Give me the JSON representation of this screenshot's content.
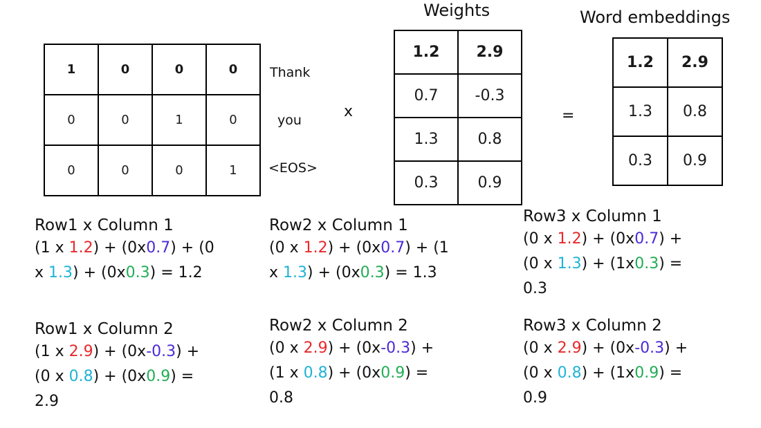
{
  "onehot": {
    "rows": [
      [
        "1",
        "0",
        "0",
        "0"
      ],
      [
        "0",
        "0",
        "1",
        "0"
      ],
      [
        "0",
        "0",
        "0",
        "1"
      ]
    ],
    "tokens": [
      "Thank",
      "you",
      "<EOS>"
    ]
  },
  "ops": {
    "times": "x",
    "equals": "="
  },
  "weights": {
    "title": "Weights",
    "rows": [
      [
        "1.2",
        "2.9"
      ],
      [
        "0.7",
        "-0.3"
      ],
      [
        "1.3",
        "0.8"
      ],
      [
        "0.3",
        "0.9"
      ]
    ]
  },
  "embeddings": {
    "title": "Word embeddings",
    "rows": [
      [
        "1.2",
        "2.9"
      ],
      [
        "1.3",
        "0.8"
      ],
      [
        "0.3",
        "0.9"
      ]
    ]
  },
  "colors": {
    "row1_weight": "#e8282b",
    "row2_weight": "#4b2ad8",
    "row3_weight": "#1fb3d6",
    "row4_weight": "#22ad55"
  },
  "calcs": [
    {
      "title": "Row1 x Column 1",
      "lines": [
        [
          {
            "t": "(1 x "
          },
          {
            "t": "1.2",
            "c": "c1"
          },
          {
            "t": ") + (0x"
          },
          {
            "t": "0.7",
            "c": "c2"
          },
          {
            "t": ") + (0"
          }
        ],
        [
          {
            "t": "x "
          },
          {
            "t": "1.3",
            "c": "c3"
          },
          {
            "t": ") + (0x"
          },
          {
            "t": "0.3",
            "c": "c4"
          },
          {
            "t": ") = 1.2"
          }
        ]
      ]
    },
    {
      "title": "Row2 x Column 1",
      "lines": [
        [
          {
            "t": "(0 x "
          },
          {
            "t": "1.2",
            "c": "c1"
          },
          {
            "t": ") + (0x"
          },
          {
            "t": "0.7",
            "c": "c2"
          },
          {
            "t": ") + (1"
          }
        ],
        [
          {
            "t": "x "
          },
          {
            "t": "1.3",
            "c": "c3"
          },
          {
            "t": ") + (0x"
          },
          {
            "t": "0.3",
            "c": "c4"
          },
          {
            "t": ") = 1.3"
          }
        ]
      ]
    },
    {
      "title": "Row3 x Column 1",
      "lines": [
        [
          {
            "t": "(0 x "
          },
          {
            "t": "1.2",
            "c": "c1"
          },
          {
            "t": ") + (0x"
          },
          {
            "t": "0.7",
            "c": "c2"
          },
          {
            "t": ") +"
          }
        ],
        [
          {
            "t": "(0 x "
          },
          {
            "t": "1.3",
            "c": "c3"
          },
          {
            "t": ") + (1x"
          },
          {
            "t": "0.3",
            "c": "c4"
          },
          {
            "t": ") ="
          }
        ],
        [
          {
            "t": "0.3"
          }
        ]
      ]
    },
    {
      "title": "Row1 x Column 2",
      "lines": [
        [
          {
            "t": "(1 x "
          },
          {
            "t": "2.9",
            "c": "c1"
          },
          {
            "t": ") + (0x"
          },
          {
            "t": "-0.3",
            "c": "c2"
          },
          {
            "t": ") +"
          }
        ],
        [
          {
            "t": "(0 x "
          },
          {
            "t": "0.8",
            "c": "c3"
          },
          {
            "t": ") + (0x"
          },
          {
            "t": "0.9",
            "c": "c4"
          },
          {
            "t": ") ="
          }
        ],
        [
          {
            "t": "2.9"
          }
        ]
      ]
    },
    {
      "title": "Row2 x Column 2",
      "lines": [
        [
          {
            "t": "(0 x "
          },
          {
            "t": "2.9",
            "c": "c1"
          },
          {
            "t": ") + (0x"
          },
          {
            "t": "-0.3",
            "c": "c2"
          },
          {
            "t": ") +"
          }
        ],
        [
          {
            "t": "(1 x "
          },
          {
            "t": "0.8",
            "c": "c3"
          },
          {
            "t": ") + (0x"
          },
          {
            "t": "0.9",
            "c": "c4"
          },
          {
            "t": ") ="
          }
        ],
        [
          {
            "t": "0.8"
          }
        ]
      ]
    },
    {
      "title": "Row3 x Column 2",
      "lines": [
        [
          {
            "t": "(0 x "
          },
          {
            "t": "2.9",
            "c": "c1"
          },
          {
            "t": ") + (0x"
          },
          {
            "t": "-0.3",
            "c": "c2"
          },
          {
            "t": ") +"
          }
        ],
        [
          {
            "t": "(0 x "
          },
          {
            "t": "0.8",
            "c": "c3"
          },
          {
            "t": ") + (1x"
          },
          {
            "t": "0.9",
            "c": "c4"
          },
          {
            "t": ") ="
          }
        ],
        [
          {
            "t": "0.9"
          }
        ]
      ]
    }
  ]
}
